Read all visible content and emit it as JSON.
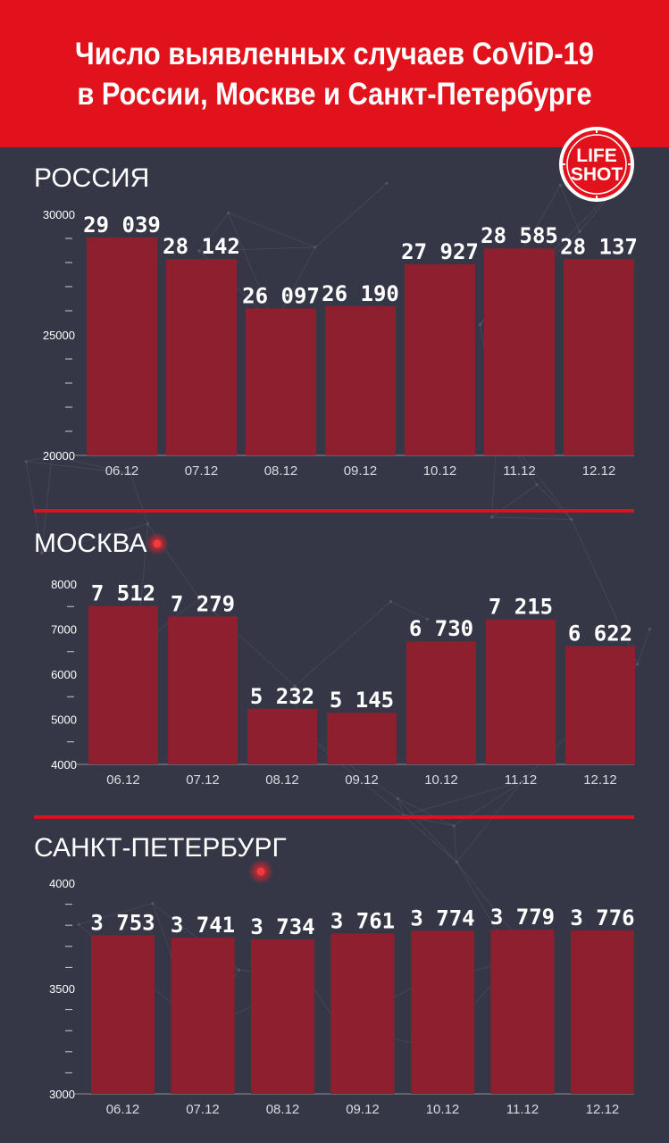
{
  "header": {
    "title_line1": "Число выявленных случаев CoViD-19",
    "title_line2": "в России, Москве и Санкт-Петербурге"
  },
  "logo": {
    "line1": "LIFE",
    "line2": "SHOT"
  },
  "colors": {
    "header": "#e2121c",
    "background": "#353746",
    "bar": "#8e1f2e",
    "divider": "#d9141f",
    "pin": "#e0232c"
  },
  "sections": [
    {
      "title": "РОССИЯ"
    },
    {
      "title": "МОСКВА"
    },
    {
      "title": "САНКТ-ПЕТЕРБУРГ"
    }
  ],
  "chart_data": [
    {
      "type": "bar",
      "title": "РОССИЯ",
      "categories": [
        "06.12",
        "07.12",
        "08.12",
        "09.12",
        "10.12",
        "11.12",
        "12.12"
      ],
      "values": [
        29039,
        28142,
        26097,
        26190,
        27927,
        28585,
        28137
      ],
      "value_labels": [
        "29 039",
        "28 142",
        "26 097",
        "26 190",
        "27 927",
        "28 585",
        "28 137"
      ],
      "ylim": [
        20000,
        30000
      ],
      "yticks": [
        30000,
        25000,
        20000
      ],
      "ytick_labels": [
        "30000",
        "25000",
        "20000"
      ],
      "minor_ticks": [
        29000,
        28000,
        27000,
        26000,
        24000,
        23000,
        22000,
        21000
      ],
      "grid": false,
      "legend": "none"
    },
    {
      "type": "bar",
      "title": "МОСКВА",
      "categories": [
        "06.12",
        "07.12",
        "08.12",
        "09.12",
        "10.12",
        "11.12",
        "12.12"
      ],
      "values": [
        7512,
        7279,
        5232,
        5145,
        6730,
        7215,
        6622
      ],
      "value_labels": [
        "7 512",
        "7 279",
        "5 232",
        "5 145",
        "6 730",
        "7 215",
        "6 622"
      ],
      "ylim": [
        4000,
        8000
      ],
      "yticks": [
        8000,
        7000,
        6000,
        5000,
        4000
      ],
      "ytick_labels": [
        "8000",
        "7000",
        "6000",
        "5000",
        "4000"
      ],
      "minor_ticks": [
        7500,
        6500,
        5500,
        4500
      ],
      "grid": false,
      "legend": "none"
    },
    {
      "type": "bar",
      "title": "САНКТ-ПЕТЕРБУРГ",
      "categories": [
        "06.12",
        "07.12",
        "08.12",
        "09.12",
        "10.12",
        "11.12",
        "12.12"
      ],
      "values": [
        3753,
        3741,
        3734,
        3761,
        3774,
        3779,
        3776
      ],
      "value_labels": [
        "3 753",
        "3 741",
        "3 734",
        "3 761",
        "3 774",
        "3 779",
        "3 776"
      ],
      "ylim": [
        3000,
        4000
      ],
      "yticks": [
        4000,
        3500,
        3000
      ],
      "ytick_labels": [
        "4000",
        "3500",
        "3000"
      ],
      "minor_ticks": [
        3900,
        3800,
        3700,
        3600,
        3400,
        3300,
        3200,
        3100
      ],
      "grid": false,
      "legend": "none"
    }
  ]
}
